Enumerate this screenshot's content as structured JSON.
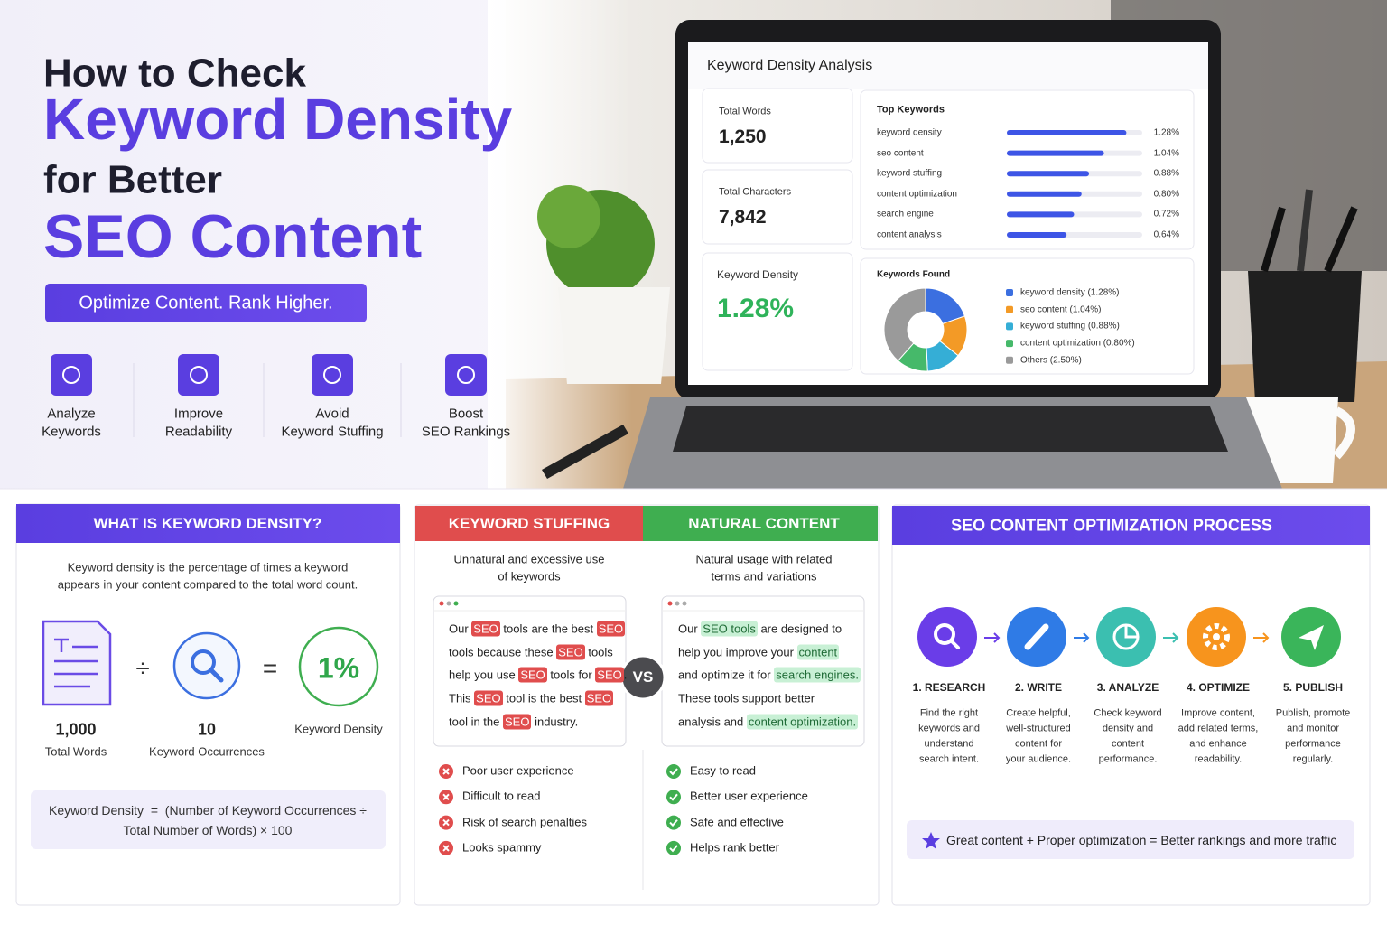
{
  "hero": {
    "heading": [
      "How to Check",
      "Keyword Density",
      "for Better",
      "SEO Content"
    ],
    "tagline": "Optimize Content. Rank Higher.",
    "features": [
      [
        "Analyze",
        "Keywords"
      ],
      [
        "Improve",
        "Readability"
      ],
      [
        "Avoid",
        "Keyword Stuffing"
      ],
      [
        "Boost",
        "SEO Rankings"
      ]
    ]
  },
  "dashboard": {
    "title": "Keyword Density Analysis",
    "stats": [
      {
        "label": "Total Words",
        "value": "1,250"
      },
      {
        "label": "Total Characters",
        "value": "7,842"
      },
      {
        "label": "Keyword Density",
        "value": "1.28%"
      }
    ],
    "top_keywords": {
      "type": "bar",
      "title": "Top Keywords",
      "categories": [
        "keyword density",
        "seo content",
        "keyword stuffing",
        "content optimization",
        "search engine",
        "content analysis"
      ],
      "values": [
        1.28,
        1.04,
        0.88,
        0.8,
        0.72,
        0.64
      ],
      "value_labels": [
        "1.28%",
        "1.04%",
        "0.88%",
        "0.80%",
        "0.72%",
        "0.64%"
      ],
      "color": "#3d55e6",
      "xlim": [
        0,
        1.45
      ]
    },
    "keywords_found": {
      "type": "pie",
      "title": "Keywords Found",
      "labels": [
        "keyword density (1.28%)",
        "seo content (1.04%)",
        "keyword stuffing (0.88%)",
        "content optimization (0.80%)",
        "Others (2.50%)"
      ],
      "values": [
        1.28,
        1.04,
        0.88,
        0.8,
        2.5
      ],
      "colors": [
        "#3b6fe0",
        "#f39a26",
        "#35aed6",
        "#46b96a",
        "#9a9a9a"
      ]
    }
  },
  "definition": {
    "title": "WHAT IS KEYWORD DENSITY?",
    "description": [
      "Keyword density is the percentage of times a keyword",
      "appears in your content compared to the total word count."
    ],
    "terms": [
      {
        "value": "1,000",
        "label": "Total Words"
      },
      {
        "value": "10",
        "label": "Keyword Occurrences"
      },
      {
        "value": "1%",
        "label": "Keyword Density"
      }
    ],
    "operators": [
      "÷",
      "="
    ],
    "formula": [
      "Keyword Density  =  (Number of Keyword Occurrences ÷",
      "Total Number of Words) × 100"
    ]
  },
  "comparison": {
    "vs": "VS",
    "columns": [
      {
        "title": "KEYWORD STUFFING",
        "subtitle": [
          "Unnatural and excessive use",
          "of keywords"
        ],
        "sample": [
          [
            "Our ",
            "SEO",
            " tools are the best ",
            "SEO"
          ],
          [
            "tools because these ",
            "SEO",
            " tools"
          ],
          [
            "help you use ",
            "SEO",
            " tools for ",
            "SEO",
            "."
          ],
          [
            "This ",
            "SEO",
            " tool is the best ",
            "SEO"
          ],
          [
            "tool in the ",
            "SEO",
            " industry."
          ]
        ],
        "points": [
          "Poor user experience",
          "Difficult to read",
          "Risk of search penalties",
          "Looks spammy"
        ]
      },
      {
        "title": "NATURAL CONTENT",
        "subtitle": [
          "Natural usage with related",
          "terms and variations"
        ],
        "sample": [
          [
            "Our ",
            "SEO tools",
            " are designed to"
          ],
          [
            "help you improve your ",
            "content"
          ],
          [
            "and optimize it for ",
            "search engines."
          ],
          [
            "These tools support better"
          ],
          [
            "analysis and ",
            "content optimization."
          ]
        ],
        "points": [
          "Easy to read",
          "Better user experience",
          "Safe and effective",
          "Helps rank better"
        ]
      }
    ]
  },
  "process": {
    "title": "SEO CONTENT OPTIMIZATION PROCESS",
    "steps": [
      {
        "title": "1. RESEARCH",
        "description": [
          "Find the right",
          "keywords and",
          "understand",
          "search intent."
        ]
      },
      {
        "title": "2. WRITE",
        "description": [
          "Create helpful,",
          "well-structured",
          "content for",
          "your audience."
        ]
      },
      {
        "title": "3. ANALYZE",
        "description": [
          "Check keyword",
          "density and",
          "content",
          "performance."
        ]
      },
      {
        "title": "4. OPTIMIZE",
        "description": [
          "Improve content,",
          "add related terms,",
          "and enhance",
          "readability."
        ]
      },
      {
        "title": "5. PUBLISH",
        "description": [
          "Publish, promote",
          "and monitor",
          "performance",
          "regularly."
        ]
      }
    ],
    "footer": "Great content + Proper optimization = Better rankings and more traffic"
  }
}
